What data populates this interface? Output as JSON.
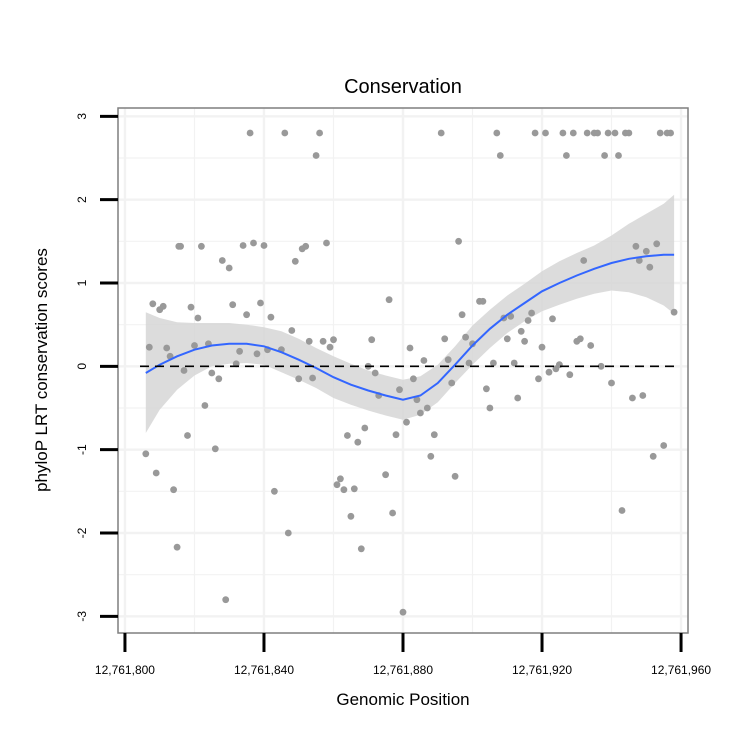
{
  "chart_data": {
    "type": "scatter",
    "title": "Conservation",
    "xlabel": "Genomic Position",
    "ylabel": "phyloP LRT conservation scores",
    "xlim": [
      12761798,
      12761962
    ],
    "ylim": [
      -3.2,
      3.1
    ],
    "x_ticks": [
      12761800,
      12761840,
      12761880,
      12761920,
      12761960
    ],
    "x_tick_labels": [
      "12,761,800",
      "12,761,840",
      "12,761,880",
      "12,761,920",
      "12,761,960"
    ],
    "y_ticks": [
      -3,
      -2,
      -1,
      0,
      1,
      2,
      3
    ],
    "y_tick_labels": [
      "-3",
      "-2",
      "-1",
      "0",
      "1",
      "2",
      "3"
    ],
    "reference_line": {
      "y": 0,
      "style": "dashed"
    },
    "colors": {
      "points": "#999999",
      "smooth": "#3366ff",
      "band": "#d6d6d6",
      "panel_border": "#7f7f7f",
      "grid": "#f2f2f2"
    },
    "points": [
      [
        12761806,
        -1.05
      ],
      [
        12761807,
        0.23
      ],
      [
        12761808,
        0.75
      ],
      [
        12761809,
        -1.28
      ],
      [
        12761810,
        0.68
      ],
      [
        12761811,
        0.72
      ],
      [
        12761812,
        0.22
      ],
      [
        12761813,
        0.12
      ],
      [
        12761814,
        -1.48
      ],
      [
        12761815,
        -2.17
      ],
      [
        12761815.5,
        1.44
      ],
      [
        12761816,
        1.44
      ],
      [
        12761817,
        -0.05
      ],
      [
        12761818,
        -0.83
      ],
      [
        12761819,
        0.71
      ],
      [
        12761820,
        0.25
      ],
      [
        12761821,
        0.58
      ],
      [
        12761822,
        1.44
      ],
      [
        12761823,
        -0.47
      ],
      [
        12761824,
        0.27
      ],
      [
        12761825,
        -0.08
      ],
      [
        12761826,
        -0.99
      ],
      [
        12761827,
        -0.15
      ],
      [
        12761828,
        1.27
      ],
      [
        12761829,
        -2.8
      ],
      [
        12761830,
        1.18
      ],
      [
        12761831,
        0.74
      ],
      [
        12761832,
        0.03
      ],
      [
        12761833,
        0.18
      ],
      [
        12761834,
        1.45
      ],
      [
        12761835,
        0.62
      ],
      [
        12761836,
        2.8
      ],
      [
        12761837,
        1.48
      ],
      [
        12761838,
        0.15
      ],
      [
        12761839,
        0.76
      ],
      [
        12761840,
        1.45
      ],
      [
        12761841,
        0.2
      ],
      [
        12761842,
        0.59
      ],
      [
        12761843,
        -1.5
      ],
      [
        12761845,
        0.2
      ],
      [
        12761846,
        2.8
      ],
      [
        12761847,
        -2.0
      ],
      [
        12761848,
        0.43
      ],
      [
        12761849,
        1.26
      ],
      [
        12761850,
        -0.15
      ],
      [
        12761851,
        1.41
      ],
      [
        12761852,
        1.44
      ],
      [
        12761853,
        0.3
      ],
      [
        12761854,
        -0.14
      ],
      [
        12761855,
        2.53
      ],
      [
        12761856,
        2.8
      ],
      [
        12761857,
        0.3
      ],
      [
        12761858,
        1.48
      ],
      [
        12761859,
        0.23
      ],
      [
        12761860,
        0.32
      ],
      [
        12761861,
        -1.42
      ],
      [
        12761862,
        -1.35
      ],
      [
        12761863,
        -1.48
      ],
      [
        12761864,
        -0.83
      ],
      [
        12761865,
        -1.8
      ],
      [
        12761866,
        -1.47
      ],
      [
        12761867,
        -0.91
      ],
      [
        12761868,
        -2.19
      ],
      [
        12761869,
        -0.74
      ],
      [
        12761870,
        0.0
      ],
      [
        12761871,
        0.32
      ],
      [
        12761872,
        -0.08
      ],
      [
        12761873,
        -0.35
      ],
      [
        12761875,
        -1.3
      ],
      [
        12761876,
        0.8
      ],
      [
        12761877,
        -1.76
      ],
      [
        12761878,
        -0.82
      ],
      [
        12761879,
        -0.28
      ],
      [
        12761880,
        -2.95
      ],
      [
        12761881,
        -0.67
      ],
      [
        12761882,
        0.22
      ],
      [
        12761883,
        -0.15
      ],
      [
        12761884,
        -0.4
      ],
      [
        12761885,
        -0.56
      ],
      [
        12761886,
        0.07
      ],
      [
        12761887,
        -0.5
      ],
      [
        12761888,
        -1.08
      ],
      [
        12761889,
        -0.82
      ],
      [
        12761891,
        2.8
      ],
      [
        12761892,
        0.33
      ],
      [
        12761893,
        0.08
      ],
      [
        12761894,
        -0.2
      ],
      [
        12761895,
        -1.32
      ],
      [
        12761896,
        1.5
      ],
      [
        12761897,
        0.62
      ],
      [
        12761898,
        0.35
      ],
      [
        12761899,
        0.04
      ],
      [
        12761900,
        0.27
      ],
      [
        12761902,
        0.78
      ],
      [
        12761903,
        0.78
      ],
      [
        12761904,
        -0.27
      ],
      [
        12761905,
        -0.5
      ],
      [
        12761906,
        0.04
      ],
      [
        12761907,
        2.8
      ],
      [
        12761908,
        2.53
      ],
      [
        12761909,
        0.58
      ],
      [
        12761910,
        0.33
      ],
      [
        12761911,
        0.6
      ],
      [
        12761912,
        0.04
      ],
      [
        12761913,
        -0.38
      ],
      [
        12761914,
        0.42
      ],
      [
        12761915,
        0.3
      ],
      [
        12761916,
        0.55
      ],
      [
        12761917,
        0.64
      ],
      [
        12761918,
        2.8
      ],
      [
        12761919,
        -0.15
      ],
      [
        12761920,
        0.23
      ],
      [
        12761921,
        2.8
      ],
      [
        12761922,
        -0.07
      ],
      [
        12761923,
        0.57
      ],
      [
        12761924,
        -0.03
      ],
      [
        12761925,
        0.02
      ],
      [
        12761926,
        2.8
      ],
      [
        12761927,
        2.53
      ],
      [
        12761928,
        -0.1
      ],
      [
        12761929,
        2.8
      ],
      [
        12761930,
        0.3
      ],
      [
        12761931,
        0.33
      ],
      [
        12761932,
        1.27
      ],
      [
        12761933,
        2.8
      ],
      [
        12761934,
        0.25
      ],
      [
        12761935,
        2.8
      ],
      [
        12761936,
        2.8
      ],
      [
        12761937,
        0.0
      ],
      [
        12761938,
        2.53
      ],
      [
        12761939,
        2.8
      ],
      [
        12761940,
        -0.2
      ],
      [
        12761941,
        2.8
      ],
      [
        12761942,
        2.53
      ],
      [
        12761943,
        -1.73
      ],
      [
        12761944,
        2.8
      ],
      [
        12761945,
        2.8
      ],
      [
        12761946,
        -0.38
      ],
      [
        12761947,
        1.44
      ],
      [
        12761948,
        1.27
      ],
      [
        12761949,
        -0.35
      ],
      [
        12761950,
        1.38
      ],
      [
        12761951,
        1.19
      ],
      [
        12761952,
        -1.08
      ],
      [
        12761953,
        1.47
      ],
      [
        12761954,
        2.8
      ],
      [
        12761955,
        -0.95
      ],
      [
        12761956,
        2.8
      ],
      [
        12761957,
        2.8
      ],
      [
        12761958,
        0.65
      ]
    ],
    "smooth": {
      "x": [
        12761806,
        12761810,
        12761815,
        12761820,
        12761825,
        12761830,
        12761835,
        12761840,
        12761845,
        12761850,
        12761855,
        12761860,
        12761865,
        12761870,
        12761875,
        12761880,
        12761885,
        12761890,
        12761895,
        12761900,
        12761905,
        12761910,
        12761915,
        12761920,
        12761925,
        12761930,
        12761935,
        12761940,
        12761945,
        12761950,
        12761955,
        12761958
      ],
      "y": [
        -0.08,
        0.02,
        0.12,
        0.2,
        0.25,
        0.27,
        0.27,
        0.24,
        0.17,
        0.08,
        -0.02,
        -0.13,
        -0.22,
        -0.29,
        -0.35,
        -0.4,
        -0.35,
        -0.2,
        0.02,
        0.25,
        0.45,
        0.62,
        0.76,
        0.9,
        1.0,
        1.09,
        1.17,
        1.24,
        1.29,
        1.32,
        1.34,
        1.34
      ],
      "upper": [
        0.65,
        0.58,
        0.53,
        0.52,
        0.52,
        0.52,
        0.5,
        0.47,
        0.42,
        0.33,
        0.22,
        0.12,
        0.03,
        -0.05,
        -0.11,
        -0.16,
        -0.12,
        0.02,
        0.24,
        0.49,
        0.68,
        0.85,
        0.99,
        1.14,
        1.26,
        1.36,
        1.45,
        1.57,
        1.71,
        1.83,
        1.95,
        2.06
      ],
      "lower": [
        -0.8,
        -0.52,
        -0.28,
        -0.11,
        0.0,
        0.03,
        0.04,
        0.02,
        -0.07,
        -0.16,
        -0.26,
        -0.38,
        -0.46,
        -0.53,
        -0.59,
        -0.64,
        -0.58,
        -0.43,
        -0.2,
        0.02,
        0.22,
        0.4,
        0.54,
        0.66,
        0.74,
        0.81,
        0.87,
        0.91,
        0.89,
        0.83,
        0.73,
        0.63
      ]
    }
  }
}
